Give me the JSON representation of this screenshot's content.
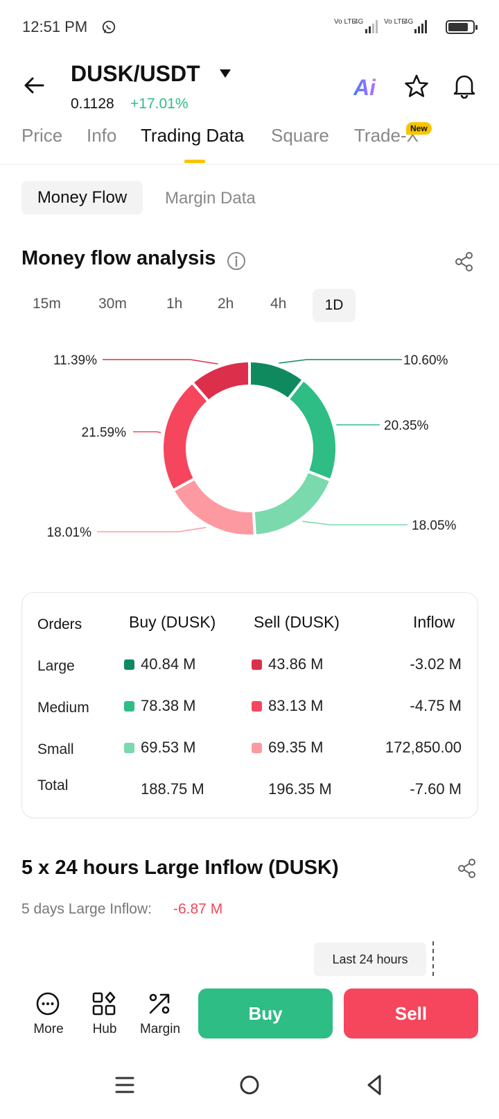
{
  "status_bar": {
    "time": "12:51 PM",
    "sim1": "Vo LTE",
    "sim1_net": "4G",
    "sim2": "Vo LTE",
    "sim2_net": "4G",
    "icons": [
      "whatsapp-icon",
      "signal-icon",
      "battery-icon"
    ]
  },
  "header": {
    "pair": "DUSK/USDT",
    "price": "0.1128",
    "change": "+17.01%",
    "ai_label": "Ai"
  },
  "tabs": [
    {
      "label": "Price",
      "active": false
    },
    {
      "label": "Info",
      "active": false
    },
    {
      "label": "Trading Data",
      "active": true
    },
    {
      "label": "Square",
      "active": false
    },
    {
      "label": "Trade-X",
      "active": false,
      "badge": "New"
    }
  ],
  "subtabs": [
    {
      "label": "Money Flow",
      "active": true
    },
    {
      "label": "Margin Data",
      "active": false
    }
  ],
  "money_flow": {
    "title": "Money flow analysis",
    "timeframes": [
      "15m",
      "30m",
      "1h",
      "2h",
      "4h",
      "1D"
    ],
    "active_timeframe": "1D"
  },
  "chart_data": {
    "type": "pie",
    "donut": true,
    "slices": [
      {
        "label": "Large Buy",
        "value": 10.6,
        "color": "#0f8a5f",
        "text": "10.60%"
      },
      {
        "label": "Medium Buy",
        "value": 20.35,
        "color": "#2ebd85",
        "text": "20.35%"
      },
      {
        "label": "Small Buy",
        "value": 18.05,
        "color": "#7ad9ad",
        "text": "18.05%"
      },
      {
        "label": "Small Sell",
        "value": 18.01,
        "color": "#fd9aa1",
        "text": "18.01%"
      },
      {
        "label": "Medium Sell",
        "value": 21.59,
        "color": "#f6465d",
        "text": "21.59%"
      },
      {
        "label": "Large Sell",
        "value": 11.39,
        "color": "#dc2f4b",
        "text": "11.39%"
      }
    ]
  },
  "table": {
    "headers": {
      "orders": "Orders",
      "buy": "Buy (DUSK)",
      "sell": "Sell (DUSK)",
      "inflow": "Inflow"
    },
    "rows": [
      {
        "label": "Large",
        "buy": "40.84 M",
        "sell": "43.86 M",
        "inflow": "-3.02 M",
        "buy_color": "#0f8a5f",
        "sell_color": "#dc2f4b"
      },
      {
        "label": "Medium",
        "buy": "78.38 M",
        "sell": "83.13 M",
        "inflow": "-4.75 M",
        "buy_color": "#2ebd85",
        "sell_color": "#f6465d"
      },
      {
        "label": "Small",
        "buy": "69.53 M",
        "sell": "69.35 M",
        "inflow": "172,850.00",
        "buy_color": "#7ad9ad",
        "sell_color": "#fd9aa1"
      }
    ],
    "total": {
      "label": "Total",
      "buy": "188.75 M",
      "sell": "196.35 M",
      "inflow": "-7.60 M"
    }
  },
  "large_inflow": {
    "title": "5 x 24 hours Large Inflow (DUSK)",
    "subtitle": "5 days Large Inflow:",
    "value": "-6.87 M",
    "tooltip": "Last 24 hours"
  },
  "bottom_bar": {
    "more": "More",
    "hub": "Hub",
    "margin": "Margin",
    "buy": "Buy",
    "sell": "Sell"
  },
  "colors": {
    "up": "#2ebd85",
    "down": "#f6465d",
    "accent": "#f7c500"
  }
}
